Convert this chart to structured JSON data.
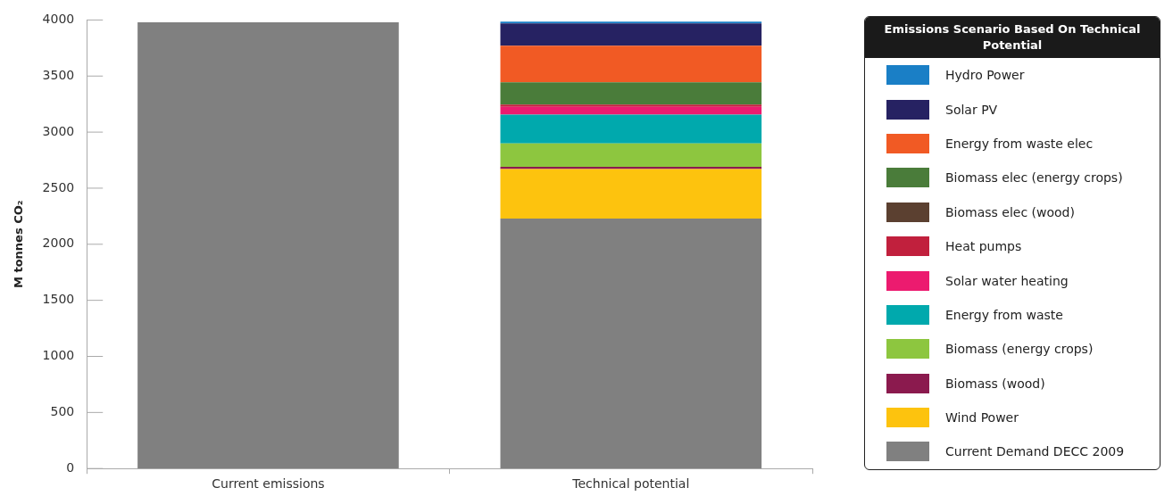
{
  "chart_data": {
    "type": "bar",
    "stacked": true,
    "ylabel": "M tonnes CO₂",
    "legend_title": "Emissions Scenario Based On Technical Potential",
    "legend": "right",
    "grid": false,
    "categories": [
      "Current emissions",
      "Technical potential"
    ],
    "ylim": [
      0,
      4000
    ],
    "yticks": [
      0,
      500,
      1000,
      1500,
      2000,
      2500,
      3000,
      3500,
      4000
    ],
    "series": [
      {
        "name": "Current Demand DECC 2009",
        "color": "#808080",
        "values": [
          3980,
          2230
        ]
      },
      {
        "name": "Wind Power",
        "color": "#fdc30e",
        "values": [
          null,
          440
        ]
      },
      {
        "name": "Biomass (wood)",
        "color": "#8b1a4e",
        "values": [
          null,
          20
        ]
      },
      {
        "name": "Biomass (energy crops)",
        "color": "#8dc63f",
        "values": [
          null,
          210
        ]
      },
      {
        "name": "Energy from waste",
        "color": "#00a9ad",
        "values": [
          null,
          255
        ]
      },
      {
        "name": "Solar water heating",
        "color": "#ec1b6f",
        "values": [
          null,
          70
        ]
      },
      {
        "name": "Heat pumps",
        "color": "#c1203d",
        "values": [
          null,
          20
        ]
      },
      {
        "name": "Biomass elec (wood)",
        "color": "#5b4030",
        "values": [
          null,
          null
        ]
      },
      {
        "name": "Biomass elec  (energy crops)",
        "color": "#4a7c3a",
        "values": [
          null,
          200
        ]
      },
      {
        "name": "Energy from waste elec",
        "color": "#f15a24",
        "values": [
          null,
          325
        ]
      },
      {
        "name": "Solar PV",
        "color": "#262262",
        "values": [
          null,
          200
        ]
      },
      {
        "name": "Hydro Power",
        "color": "#1a7fc6",
        "values": [
          null,
          15
        ]
      }
    ]
  }
}
